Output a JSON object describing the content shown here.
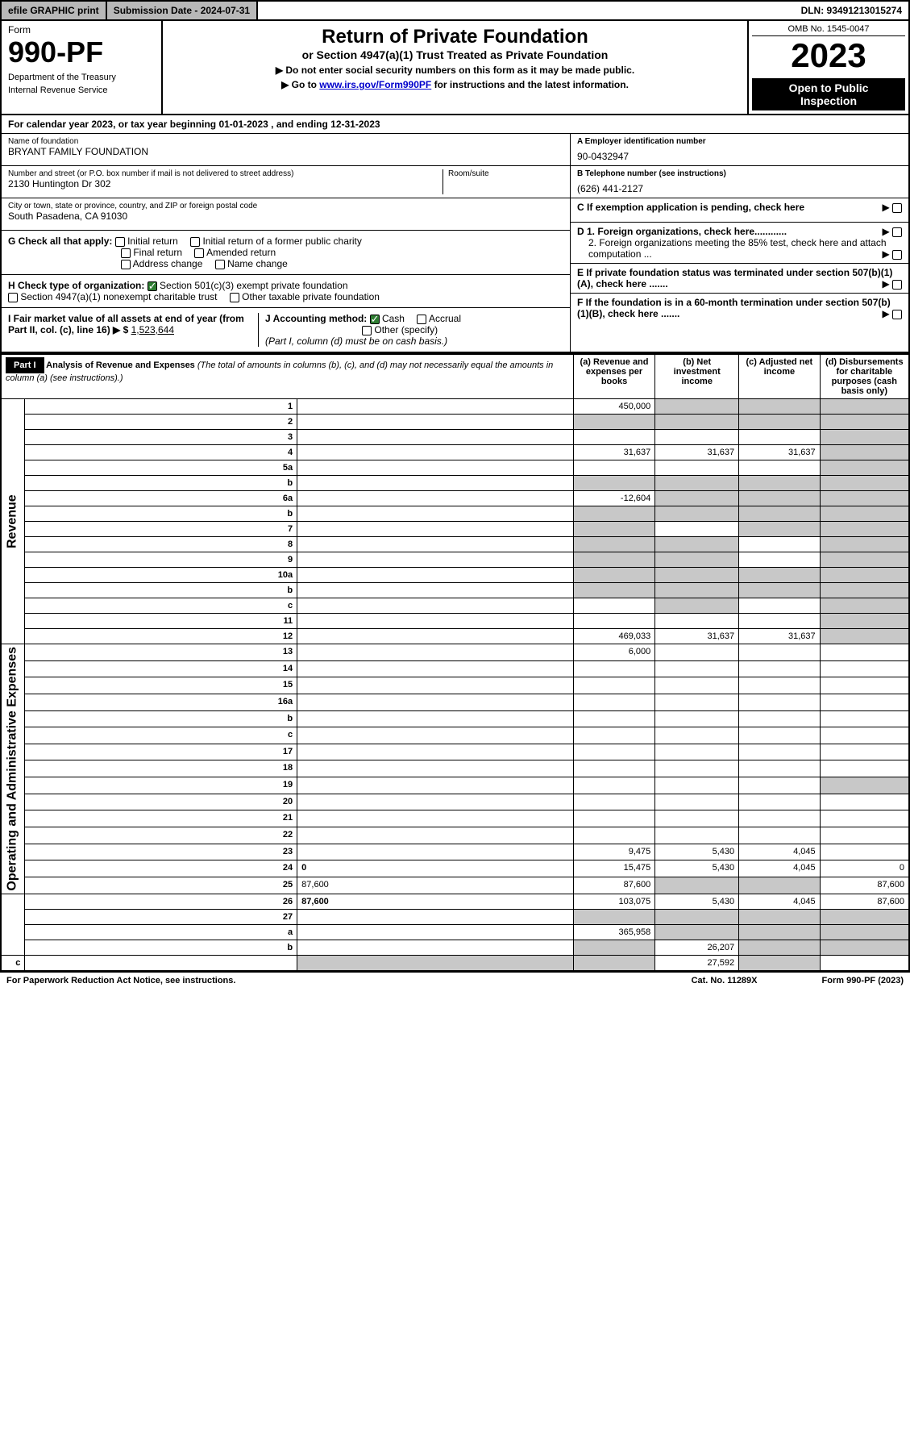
{
  "top": {
    "efile": "efile GRAPHIC print",
    "sub_date_label": "Submission Date - 2024-07-31",
    "dln": "DLN: 93491213015274"
  },
  "header": {
    "form_word": "Form",
    "form_num": "990-PF",
    "dept1": "Department of the Treasury",
    "dept2": "Internal Revenue Service",
    "title": "Return of Private Foundation",
    "subtitle": "or Section 4947(a)(1) Trust Treated as Private Foundation",
    "instr1": "▶ Do not enter social security numbers on this form as it may be made public.",
    "instr2_pre": "▶ Go to ",
    "instr2_link": "www.irs.gov/Form990PF",
    "instr2_post": " for instructions and the latest information.",
    "omb": "OMB No. 1545-0047",
    "year": "2023",
    "open1": "Open to Public",
    "open2": "Inspection"
  },
  "calyear": "For calendar year 2023, or tax year beginning 01-01-2023             , and ending 12-31-2023",
  "identity": {
    "name_lbl": "Name of foundation",
    "name_val": "BRYANT FAMILY FOUNDATION",
    "addr_lbl": "Number and street (or P.O. box number if mail is not delivered to street address)",
    "addr_val": "2130 Huntington Dr 302",
    "room_lbl": "Room/suite",
    "city_lbl": "City or town, state or province, country, and ZIP or foreign postal code",
    "city_val": "South Pasadena, CA  91030",
    "ein_lbl": "A Employer identification number",
    "ein_val": "90-0432947",
    "tel_lbl": "B Telephone number (see instructions)",
    "tel_val": "(626) 441-2127",
    "c_lbl": "C If exemption application is pending, check here",
    "d1": "D 1. Foreign organizations, check here............",
    "d2": "2. Foreign organizations meeting the 85% test, check here and attach computation ...",
    "e_lbl": "E  If private foundation status was terminated under section 507(b)(1)(A), check here .......",
    "f_lbl": "F  If the foundation is in a 60-month termination under section 507(b)(1)(B), check here .......",
    "g_lbl": "G Check all that apply:",
    "g_opts": [
      "Initial return",
      "Initial return of a former public charity",
      "Final return",
      "Amended return",
      "Address change",
      "Name change"
    ],
    "h_lbl": "H Check type of organization:",
    "h1": "Section 501(c)(3) exempt private foundation",
    "h2": "Section 4947(a)(1) nonexempt charitable trust",
    "h3": "Other taxable private foundation",
    "i_lbl": "I Fair market value of all assets at end of year (from Part II, col. (c), line 16) ▶ $",
    "i_val": "1,523,644",
    "j_lbl": "J Accounting method:",
    "j_cash": "Cash",
    "j_accrual": "Accrual",
    "j_other": "Other (specify)",
    "j_note": "(Part I, column (d) must be on cash basis.)"
  },
  "part1": {
    "label": "Part I",
    "title": "Analysis of Revenue and Expenses",
    "title_note": "(The total of amounts in columns (b), (c), and (d) may not necessarily equal the amounts in column (a) (see instructions).)",
    "col_a": "(a)   Revenue and expenses per books",
    "col_b": "(b)   Net investment income",
    "col_c": "(c)   Adjusted net income",
    "col_d": "(d)   Disbursements for charitable purposes (cash basis only)"
  },
  "side_labels": {
    "rev": "Revenue",
    "exp": "Operating and Administrative Expenses"
  },
  "rows": [
    {
      "n": "1",
      "d": "",
      "a": "450,000",
      "b": "",
      "c": "",
      "shade": [
        "b",
        "c",
        "d"
      ]
    },
    {
      "n": "2",
      "d": "",
      "a": "",
      "b": "",
      "c": "",
      "shade": [
        "a",
        "b",
        "c",
        "d"
      ]
    },
    {
      "n": "3",
      "d": "",
      "a": "",
      "b": "",
      "c": "",
      "shade": [
        "d"
      ]
    },
    {
      "n": "4",
      "d": "",
      "a": "31,637",
      "b": "31,637",
      "c": "31,637",
      "shade": [
        "d"
      ]
    },
    {
      "n": "5a",
      "d": "",
      "a": "",
      "b": "",
      "c": "",
      "shade": [
        "d"
      ]
    },
    {
      "n": "b",
      "d": "",
      "a": "",
      "b": "",
      "c": "",
      "shade": [
        "a",
        "b",
        "c",
        "d"
      ]
    },
    {
      "n": "6a",
      "d": "",
      "a": "-12,604",
      "b": "",
      "c": "",
      "shade": [
        "b",
        "c",
        "d"
      ]
    },
    {
      "n": "b",
      "d": "",
      "a": "",
      "b": "",
      "c": "",
      "shade": [
        "a",
        "b",
        "c",
        "d"
      ]
    },
    {
      "n": "7",
      "d": "",
      "a": "",
      "b": "",
      "c": "",
      "shade": [
        "a",
        "c",
        "d"
      ]
    },
    {
      "n": "8",
      "d": "",
      "a": "",
      "b": "",
      "c": "",
      "shade": [
        "a",
        "b",
        "d"
      ]
    },
    {
      "n": "9",
      "d": "",
      "a": "",
      "b": "",
      "c": "",
      "shade": [
        "a",
        "b",
        "d"
      ]
    },
    {
      "n": "10a",
      "d": "",
      "a": "",
      "b": "",
      "c": "",
      "shade": [
        "a",
        "b",
        "c",
        "d"
      ]
    },
    {
      "n": "b",
      "d": "",
      "a": "",
      "b": "",
      "c": "",
      "shade": [
        "a",
        "b",
        "c",
        "d"
      ]
    },
    {
      "n": "c",
      "d": "",
      "a": "",
      "b": "",
      "c": "",
      "shade": [
        "b",
        "d"
      ]
    },
    {
      "n": "11",
      "d": "",
      "a": "",
      "b": "",
      "c": "",
      "shade": [
        "d"
      ]
    },
    {
      "n": "12",
      "d": "",
      "a": "469,033",
      "b": "31,637",
      "c": "31,637",
      "bold": true,
      "shade": [
        "d"
      ]
    },
    {
      "n": "13",
      "d": "",
      "a": "6,000",
      "b": "",
      "c": ""
    },
    {
      "n": "14",
      "d": "",
      "a": "",
      "b": "",
      "c": ""
    },
    {
      "n": "15",
      "d": "",
      "a": "",
      "b": "",
      "c": ""
    },
    {
      "n": "16a",
      "d": "",
      "a": "",
      "b": "",
      "c": ""
    },
    {
      "n": "b",
      "d": "",
      "a": "",
      "b": "",
      "c": ""
    },
    {
      "n": "c",
      "d": "",
      "a": "",
      "b": "",
      "c": ""
    },
    {
      "n": "17",
      "d": "",
      "a": "",
      "b": "",
      "c": ""
    },
    {
      "n": "18",
      "d": "",
      "a": "",
      "b": "",
      "c": ""
    },
    {
      "n": "19",
      "d": "",
      "a": "",
      "b": "",
      "c": "",
      "shade": [
        "d"
      ]
    },
    {
      "n": "20",
      "d": "",
      "a": "",
      "b": "",
      "c": ""
    },
    {
      "n": "21",
      "d": "",
      "a": "",
      "b": "",
      "c": ""
    },
    {
      "n": "22",
      "d": "",
      "a": "",
      "b": "",
      "c": ""
    },
    {
      "n": "23",
      "d": "",
      "a": "9,475",
      "b": "5,430",
      "c": "4,045"
    },
    {
      "n": "24",
      "d": "0",
      "a": "15,475",
      "b": "5,430",
      "c": "4,045",
      "bold": true
    },
    {
      "n": "25",
      "d": "87,600",
      "a": "87,600",
      "b": "",
      "c": "",
      "shade": [
        "b",
        "c"
      ]
    },
    {
      "n": "26",
      "d": "87,600",
      "a": "103,075",
      "b": "5,430",
      "c": "4,045",
      "bold": true
    },
    {
      "n": "27",
      "d": "",
      "a": "",
      "b": "",
      "c": "",
      "shade": [
        "a",
        "b",
        "c",
        "d"
      ]
    },
    {
      "n": "a",
      "d": "",
      "a": "365,958",
      "b": "",
      "c": "",
      "bold": true,
      "shade": [
        "b",
        "c",
        "d"
      ]
    },
    {
      "n": "b",
      "d": "",
      "a": "",
      "b": "26,207",
      "c": "",
      "bold": true,
      "shade": [
        "a",
        "c",
        "d"
      ]
    },
    {
      "n": "c",
      "d": "",
      "a": "",
      "b": "",
      "c": "27,592",
      "bold": true,
      "shade": [
        "a",
        "b",
        "d"
      ]
    }
  ],
  "footer": {
    "left": "For Paperwork Reduction Act Notice, see instructions.",
    "mid": "Cat. No. 11289X",
    "right": "Form 990-PF (2023)"
  },
  "colors": {
    "grey": "#b8b8b8",
    "shade": "#c8c8c8",
    "link": "#0000cc",
    "green": "#2e7d32"
  }
}
